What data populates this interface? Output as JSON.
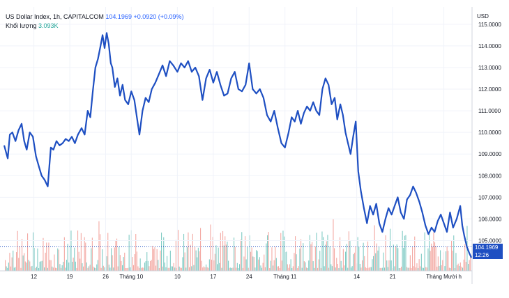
{
  "legend": {
    "symbol": "US Dollar Index, 1h, CAPITALCOM",
    "last": "104.1969",
    "change": "+0.0920 (+0.09%)",
    "volume_label": "Khối lượng",
    "volume_value": "3.093K"
  },
  "price_tag": {
    "price": "104.1969",
    "countdown": "12:26"
  },
  "colors": {
    "line": "#1e4fc2",
    "vol_up": "#80cbc4",
    "vol_down": "#f3a9a3",
    "grid": "#f0f3fa",
    "axis_text": "#131722"
  },
  "chart_data": {
    "type": "line",
    "title": "",
    "currency": "USD",
    "y_ticks": [
      "105.0000",
      "106.0000",
      "107.0000",
      "108.0000",
      "109.0000",
      "110.0000",
      "111.0000",
      "112.0000",
      "113.0000",
      "114.0000",
      "115.0000"
    ],
    "ylim": [
      103.6,
      115.8
    ],
    "x_ticks": [
      "12",
      "19",
      "26",
      "Tháng 10",
      "10",
      "17",
      "24",
      "Tháng 11",
      "14",
      "21",
      "Tháng Mười h"
    ],
    "x_tick_days": [
      12,
      19,
      26,
      31,
      40,
      47,
      54,
      61,
      75,
      82,
      92
    ],
    "x_range_days": [
      6.2,
      97.5
    ],
    "series": [
      {
        "name": "",
        "x_days": [
          6.2,
          6.9,
          7.3,
          7.8,
          8.4,
          9.0,
          9.6,
          10.1,
          10.6,
          11.2,
          11.8,
          12.4,
          13.0,
          13.5,
          14.1,
          14.7,
          15.3,
          15.8,
          16.4,
          17.0,
          17.6,
          18.2,
          18.8,
          19.4,
          20.0,
          20.6,
          21.3,
          21.9,
          22.5,
          23.0,
          23.5,
          24.0,
          24.5,
          25.0,
          25.4,
          25.8,
          26.2,
          26.6,
          27.0,
          27.3,
          27.8,
          28.3,
          28.8,
          29.3,
          29.8,
          30.4,
          31.0,
          31.6,
          32.1,
          32.6,
          33.2,
          33.8,
          34.4,
          35.0,
          35.7,
          36.4,
          37.1,
          37.8,
          38.5,
          39.2,
          40.0,
          40.7,
          41.4,
          42.1,
          42.8,
          43.5,
          44.2,
          44.9,
          45.6,
          46.3,
          47.0,
          47.7,
          48.4,
          49.1,
          49.8,
          50.5,
          51.2,
          51.9,
          52.6,
          53.3,
          54.0,
          54.7,
          55.4,
          56.1,
          56.8,
          57.5,
          58.2,
          58.9,
          59.6,
          60.3,
          61.0,
          61.7,
          62.3,
          62.9,
          63.5,
          64.1,
          64.7,
          65.3,
          65.9,
          66.5,
          67.1,
          67.7,
          68.3,
          68.9,
          69.5,
          70.1,
          70.7,
          71.2,
          71.8,
          72.3,
          72.8,
          73.3,
          73.8,
          74.3,
          74.8,
          75.3,
          75.8,
          76.4,
          77.0,
          77.6,
          78.2,
          78.8,
          79.4,
          80.0,
          80.6,
          81.2,
          81.8,
          82.4,
          83.0,
          83.6,
          84.2,
          84.8,
          85.4,
          86.0,
          86.6,
          87.2,
          87.8,
          88.4,
          89.0,
          89.6,
          90.2,
          90.8,
          91.4,
          92.0,
          92.6,
          93.2,
          93.8,
          94.5,
          95.2,
          95.6,
          96.0,
          96.5,
          97.0,
          97.4
        ],
        "values": [
          109.4,
          108.8,
          109.9,
          110.0,
          109.6,
          110.1,
          110.4,
          109.6,
          109.2,
          110.0,
          109.8,
          108.9,
          108.4,
          108.0,
          107.8,
          107.5,
          109.3,
          109.2,
          109.6,
          109.4,
          109.5,
          109.7,
          109.6,
          109.8,
          109.5,
          109.9,
          110.2,
          109.9,
          111.0,
          110.7,
          111.9,
          113.0,
          113.4,
          114.0,
          114.5,
          113.9,
          114.6,
          114.1,
          113.2,
          113.0,
          112.1,
          112.5,
          111.7,
          112.2,
          111.5,
          111.3,
          111.9,
          111.5,
          110.7,
          109.9,
          111.0,
          111.6,
          111.4,
          112.0,
          112.3,
          112.7,
          113.1,
          112.6,
          113.3,
          113.1,
          112.8,
          113.2,
          113.0,
          113.3,
          112.8,
          113.0,
          112.6,
          111.5,
          112.5,
          112.9,
          112.3,
          112.8,
          112.2,
          111.7,
          111.8,
          112.5,
          112.8,
          112.0,
          111.9,
          112.2,
          113.2,
          112.0,
          111.8,
          112.0,
          111.6,
          110.8,
          110.5,
          111.0,
          110.2,
          109.5,
          109.3,
          110.0,
          110.7,
          110.5,
          111.0,
          110.4,
          110.9,
          111.2,
          111.0,
          111.4,
          111.0,
          110.8,
          112.0,
          112.5,
          112.2,
          111.3,
          111.6,
          110.6,
          111.3,
          110.8,
          110.0,
          109.5,
          109.0,
          109.8,
          110.5,
          108.2,
          107.3,
          106.5,
          105.8,
          106.6,
          106.2,
          106.7,
          105.8,
          105.4,
          106.0,
          106.5,
          106.2,
          106.6,
          107.0,
          106.3,
          106.0,
          106.9,
          107.1,
          107.5,
          107.2,
          106.8,
          106.3,
          105.7,
          105.3,
          105.6,
          105.4,
          105.9,
          106.2,
          105.8,
          105.4,
          106.3,
          105.6,
          106.0,
          106.6,
          105.7,
          105.2,
          104.7,
          104.4,
          104.2
        ]
      }
    ],
    "volume_range": [
      0,
      100
    ]
  }
}
